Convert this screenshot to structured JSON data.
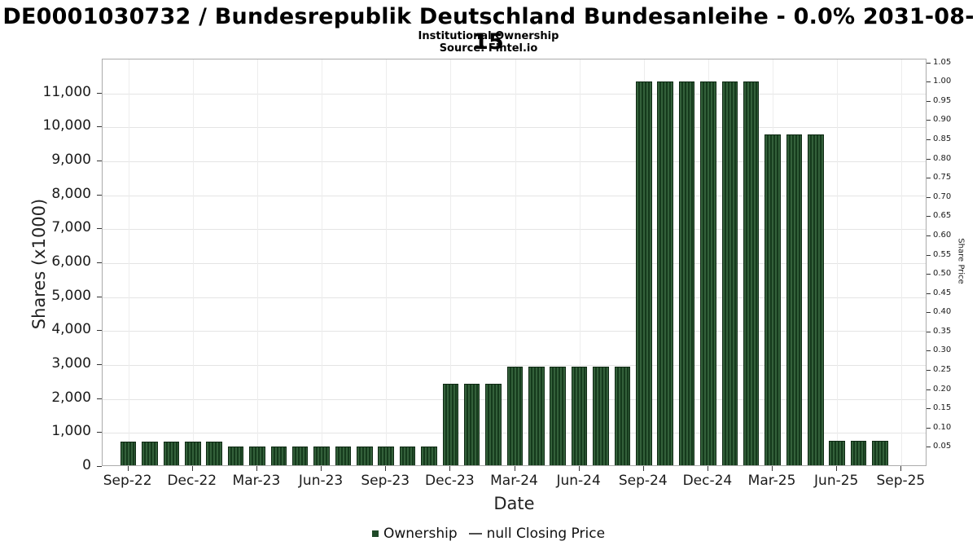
{
  "header": {
    "title": "DE0001030732 / Bundesrepublik Deutschland Bundesanleihe - 0.0% 2031-08-15",
    "subtitle": "Institutional Ownership",
    "source": "Source: Fintel.io"
  },
  "axes": {
    "left_label": "Shares (x1000)",
    "right_label": "Share Price",
    "x_label": "Date"
  },
  "legend": {
    "ownership_label": "Ownership",
    "price_label": "null Closing Price"
  },
  "chart_data": {
    "type": "bar",
    "title": "DE0001030732 / Bundesrepublik Deutschland Bundesanleihe - 0.0% 2031-08-15",
    "subtitle": "Institutional Ownership",
    "source": "Source: Fintel.io",
    "xlabel": "Date",
    "ylabel": "Shares (x1000)",
    "y2label": "Share Price",
    "ylim": [
      0,
      12000
    ],
    "y2lim": [
      0,
      1.06
    ],
    "grid": true,
    "legend_position": "bottom",
    "bar_color": "#1f4a28",
    "categories": [
      "Sep-22",
      "Oct-22",
      "Nov-22",
      "Dec-22",
      "Jan-23",
      "Feb-23",
      "Mar-23",
      "Apr-23",
      "May-23",
      "Jun-23",
      "Jul-23",
      "Aug-23",
      "Sep-23",
      "Oct-23",
      "Nov-23",
      "Dec-23",
      "Jan-24",
      "Feb-24",
      "Mar-24",
      "Apr-24",
      "May-24",
      "Jun-24",
      "Jul-24",
      "Aug-24",
      "Sep-24",
      "Oct-24",
      "Nov-24",
      "Dec-24",
      "Jan-25",
      "Feb-25",
      "Mar-25",
      "Apr-25",
      "May-25",
      "Jun-25",
      "Jul-25",
      "Aug-25"
    ],
    "series": [
      {
        "name": "Ownership",
        "values": [
          700,
          700,
          700,
          700,
          700,
          560,
          560,
          560,
          560,
          560,
          560,
          560,
          560,
          560,
          560,
          2400,
          2400,
          2400,
          2900,
          2900,
          2900,
          2900,
          2900,
          2900,
          11300,
          11300,
          11300,
          11300,
          11300,
          11300,
          9750,
          9750,
          9750,
          720,
          720,
          720
        ]
      }
    ],
    "left_tick_values": [
      0,
      1000,
      2000,
      3000,
      4000,
      5000,
      6000,
      7000,
      8000,
      9000,
      10000,
      11000
    ],
    "left_tick_labels": [
      "0",
      "1,000",
      "2,000",
      "3,000",
      "4,000",
      "5,000",
      "6,000",
      "7,000",
      "8,000",
      "9,000",
      "10,000",
      "11,000"
    ],
    "right_tick_values": [
      0.05,
      0.1,
      0.15,
      0.2,
      0.25,
      0.3,
      0.35,
      0.4,
      0.45,
      0.5,
      0.55,
      0.6,
      0.65,
      0.7,
      0.75,
      0.8,
      0.85,
      0.9,
      0.95,
      1.0,
      1.05
    ],
    "right_tick_labels": [
      "0.05",
      "0.10",
      "0.15",
      "0.20",
      "0.25",
      "0.30",
      "0.35",
      "0.40",
      "0.45",
      "0.50",
      "0.55",
      "0.60",
      "0.65",
      "0.70",
      "0.75",
      "0.80",
      "0.85",
      "0.90",
      "0.95",
      "1.00",
      "1.05"
    ],
    "x_tick_labels": [
      "Sep-22",
      "Dec-22",
      "Mar-23",
      "Jun-23",
      "Sep-23",
      "Dec-23",
      "Mar-24",
      "Jun-24",
      "Sep-24",
      "Dec-24",
      "Mar-25",
      "Jun-25",
      "Sep-25"
    ],
    "x_tick_month_step": 3
  }
}
